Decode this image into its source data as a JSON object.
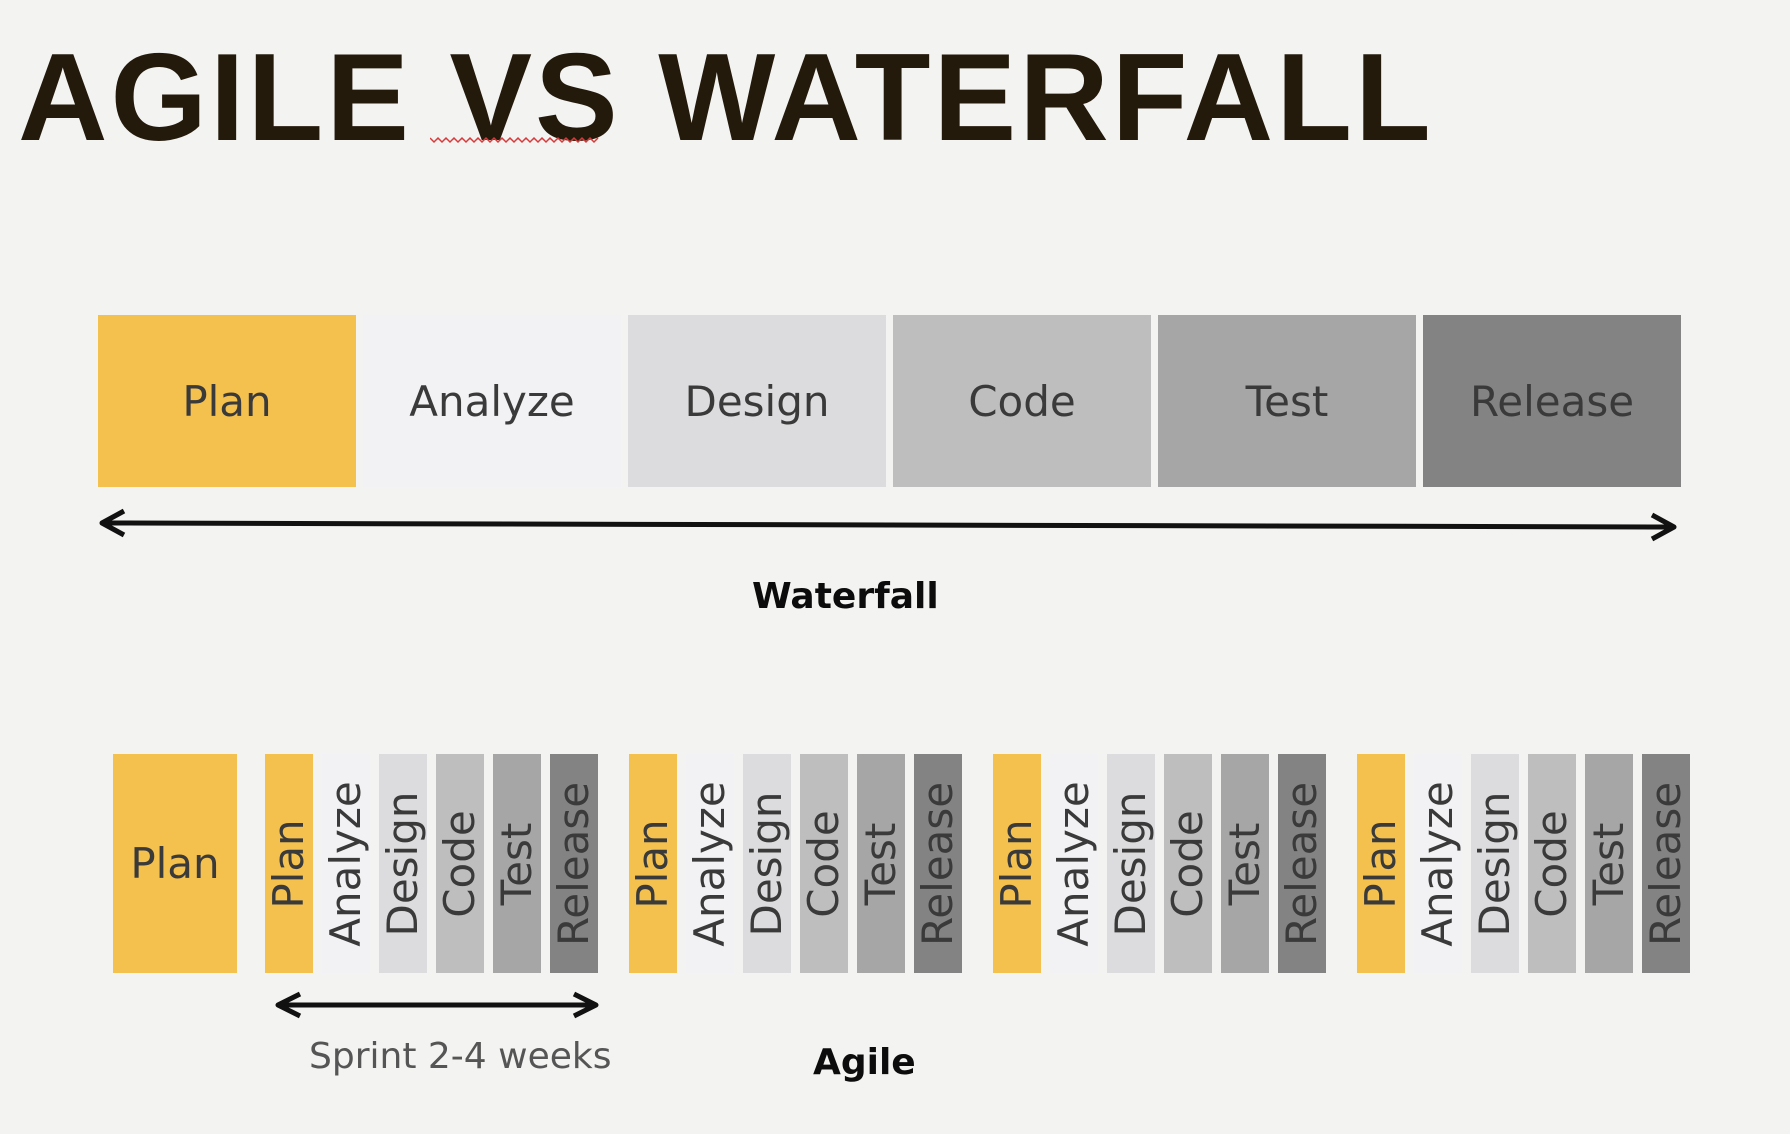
{
  "title": "AGILE VS WATERFALL",
  "waterfall": {
    "label": "Waterfall",
    "phases": [
      {
        "name": "Plan",
        "color": "#f4c14e"
      },
      {
        "name": "Analyze",
        "color": "#f2f2f4"
      },
      {
        "name": "Design",
        "color": "#dcdcde"
      },
      {
        "name": "Code",
        "color": "#bebebf"
      },
      {
        "name": "Test",
        "color": "#a6a6a6"
      },
      {
        "name": "Release",
        "color": "#838383"
      }
    ]
  },
  "agile": {
    "label": "Agile",
    "initial_phase": "Plan",
    "sprint_label": "Sprint 2-4 weeks",
    "sprint_count": 4,
    "sprint_phases": [
      {
        "name": "Plan",
        "color": "#f4c14e"
      },
      {
        "name": "Analyze",
        "color": "#f2f2f4"
      },
      {
        "name": "Design",
        "color": "#dcdcde"
      },
      {
        "name": "Code",
        "color": "#bebebf"
      },
      {
        "name": "Test",
        "color": "#a6a6a6"
      },
      {
        "name": "Release",
        "color": "#838383"
      }
    ]
  }
}
